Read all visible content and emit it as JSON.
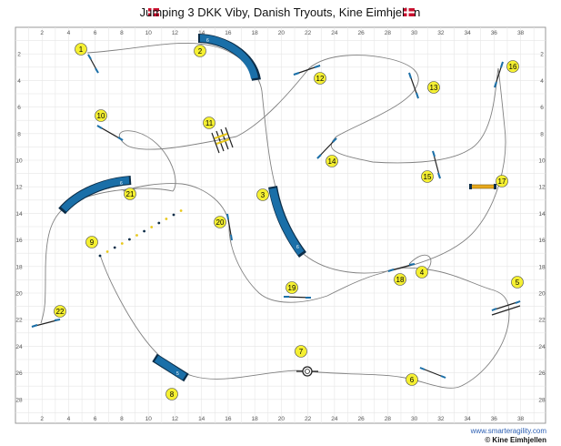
{
  "title": "Jumping 3 DKK Viby, Danish Tryouts, Kine Eimhjellen",
  "flag_colors": {
    "red": "#c8102e",
    "white": "#ffffff"
  },
  "footer": {
    "site": "www.smarteragility.com",
    "copyright": "© Kine Eimhjellen"
  },
  "colors": {
    "tunnel": "#1a6fa8",
    "tunnel_dark": "#0c2d48",
    "marker": "#f5f032",
    "path": "#808080",
    "grid": "#e6e6e6"
  },
  "grid": {
    "x_ticks": [
      "2",
      "4",
      "6",
      "8",
      "10",
      "12",
      "14",
      "16",
      "18",
      "20",
      "22",
      "24",
      "26",
      "28",
      "30",
      "32",
      "34",
      "36",
      "38"
    ],
    "y_ticks": [
      "2",
      "4",
      "6",
      "8",
      "10",
      "12",
      "14",
      "16",
      "18",
      "20",
      "22",
      "24",
      "26",
      "28"
    ]
  },
  "obstacles": [
    {
      "num": "1",
      "type": "jump"
    },
    {
      "num": "2",
      "type": "tunnel",
      "label": "6"
    },
    {
      "num": "3",
      "type": "tunnel",
      "label": "6"
    },
    {
      "num": "4",
      "type": "jump"
    },
    {
      "num": "5",
      "type": "jump"
    },
    {
      "num": "6",
      "type": "jump"
    },
    {
      "num": "7",
      "type": "tyre"
    },
    {
      "num": "8",
      "type": "tunnel",
      "label": "5"
    },
    {
      "num": "9",
      "type": "weave"
    },
    {
      "num": "10",
      "type": "jump"
    },
    {
      "num": "11",
      "type": "long-jump"
    },
    {
      "num": "12",
      "type": "jump"
    },
    {
      "num": "13",
      "type": "jump"
    },
    {
      "num": "14",
      "type": "jump"
    },
    {
      "num": "15",
      "type": "jump"
    },
    {
      "num": "16",
      "type": "jump"
    },
    {
      "num": "17",
      "type": "wall"
    },
    {
      "num": "18",
      "type": "jump"
    },
    {
      "num": "19",
      "type": "jump"
    },
    {
      "num": "20",
      "type": "jump"
    },
    {
      "num": "21",
      "type": "tunnel",
      "label": "6"
    },
    {
      "num": "22",
      "type": "jump"
    }
  ]
}
